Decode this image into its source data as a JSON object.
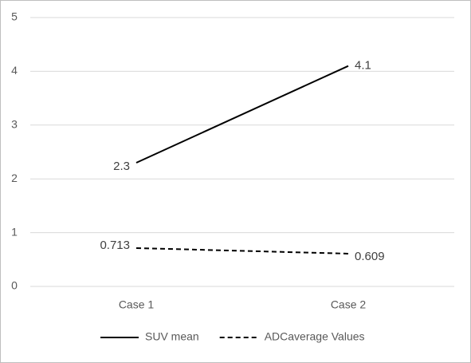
{
  "chart_data": {
    "type": "line",
    "categories": [
      "Case 1",
      "Case 2"
    ],
    "series": [
      {
        "name": "SUV mean",
        "color": "#000000",
        "dash": false,
        "values": [
          2.3,
          4.1
        ]
      },
      {
        "name": "ADCaverage Values",
        "color": "#000000",
        "dash": true,
        "values": [
          0.713,
          0.609
        ]
      }
    ],
    "ylim": [
      0,
      5
    ],
    "yticks": [
      0,
      1,
      2,
      3,
      4,
      5
    ],
    "grid": true,
    "legend": "bottom"
  }
}
